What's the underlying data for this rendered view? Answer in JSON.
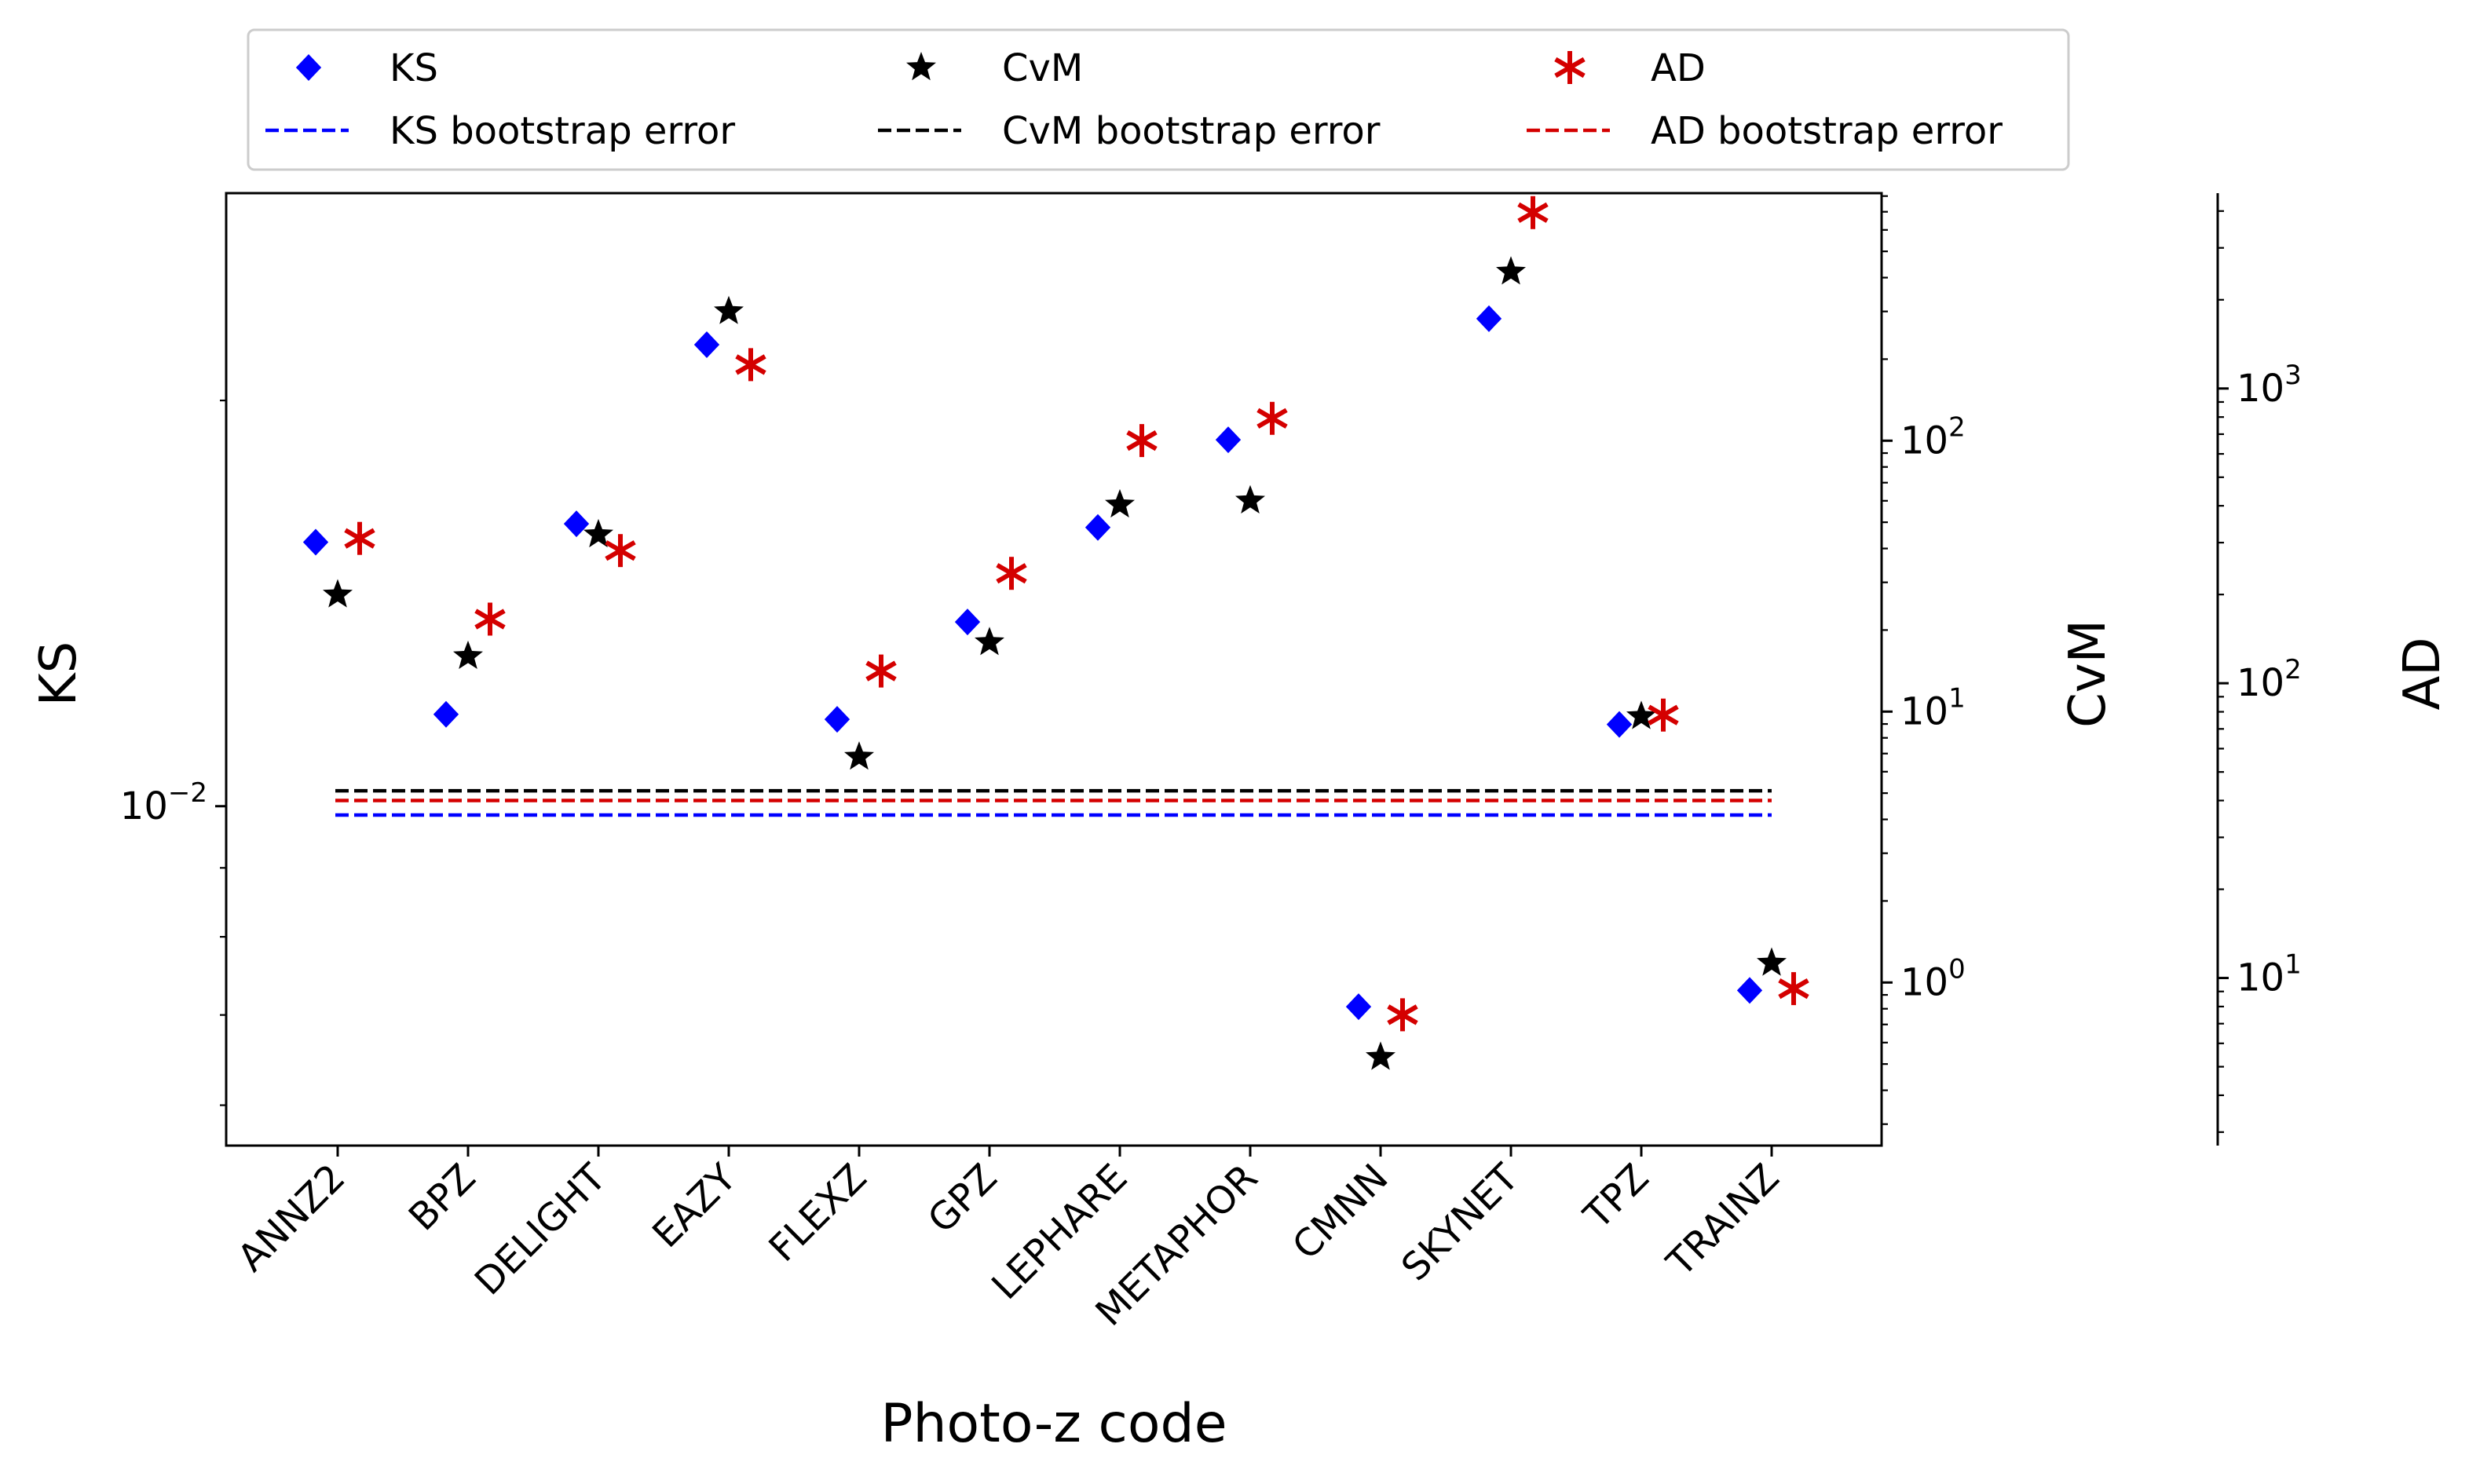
{
  "chart_data": {
    "type": "scatter",
    "categories": [
      "ANNZ2",
      "BPZ",
      "DELIGHT",
      "EAZY",
      "FLEXZ",
      "GPZ",
      "LEPHARE",
      "METAPHOR",
      "CMNN",
      "SKYNET",
      "TPZ",
      "TRAINZ"
    ],
    "xlabel": "Photo-z code",
    "axes": [
      {
        "key": "ks",
        "label": "KS",
        "scale": "log",
        "ylim": [
          0.0056,
          0.0285
        ],
        "ticks": [
          {
            "value": 0.01,
            "base": "10",
            "exp": "−2"
          }
        ]
      },
      {
        "key": "cvm",
        "label": "CvM",
        "scale": "log",
        "ylim": [
          0.25,
          820
        ],
        "ticks": [
          {
            "value": 1,
            "base": "10",
            "exp": "0"
          },
          {
            "value": 10,
            "base": "10",
            "exp": "1"
          },
          {
            "value": 100,
            "base": "10",
            "exp": "2"
          }
        ]
      },
      {
        "key": "ad",
        "label": "AD",
        "scale": "log",
        "ylim": [
          2.7,
          4600
        ],
        "ticks": [
          {
            "value": 10,
            "base": "10",
            "exp": "1"
          },
          {
            "value": 100,
            "base": "10",
            "exp": "2"
          },
          {
            "value": 1000,
            "base": "10",
            "exp": "3"
          }
        ]
      }
    ],
    "series": [
      {
        "name": "KS",
        "axis": "ks",
        "marker": "diamond",
        "color": "#0000ff",
        "values": [
          0.0157,
          0.0117,
          0.0162,
          0.022,
          0.0116,
          0.0137,
          0.0161,
          0.0187,
          0.0071,
          0.023,
          0.0115,
          0.0073
        ]
      },
      {
        "name": "CvM",
        "axis": "cvm",
        "marker": "star",
        "color": "#000000",
        "values": [
          27,
          16,
          45,
          300,
          6.8,
          18,
          58,
          60,
          0.53,
          420,
          9.6,
          1.18
        ]
      },
      {
        "name": "AD",
        "axis": "ad",
        "marker": "asterisk",
        "color": "#d40000",
        "values": [
          310,
          165,
          282,
          1205,
          110,
          236,
          666,
          792,
          7.5,
          3950,
          78,
          9.2
        ]
      }
    ],
    "bootstrap_errors": [
      {
        "name": "KS bootstrap error",
        "axis": "ks",
        "value": 0.00985,
        "color": "#0000ff",
        "style": "dashed"
      },
      {
        "name": "CvM bootstrap error",
        "axis": "cvm",
        "value": 5.1,
        "color": "#000000",
        "style": "dashed"
      },
      {
        "name": "AD bootstrap error",
        "axis": "ad",
        "value": 40,
        "color": "#d40000",
        "style": "dashed"
      }
    ],
    "legend": {
      "placement": "top-center",
      "columns": 3
    },
    "grid": false
  }
}
